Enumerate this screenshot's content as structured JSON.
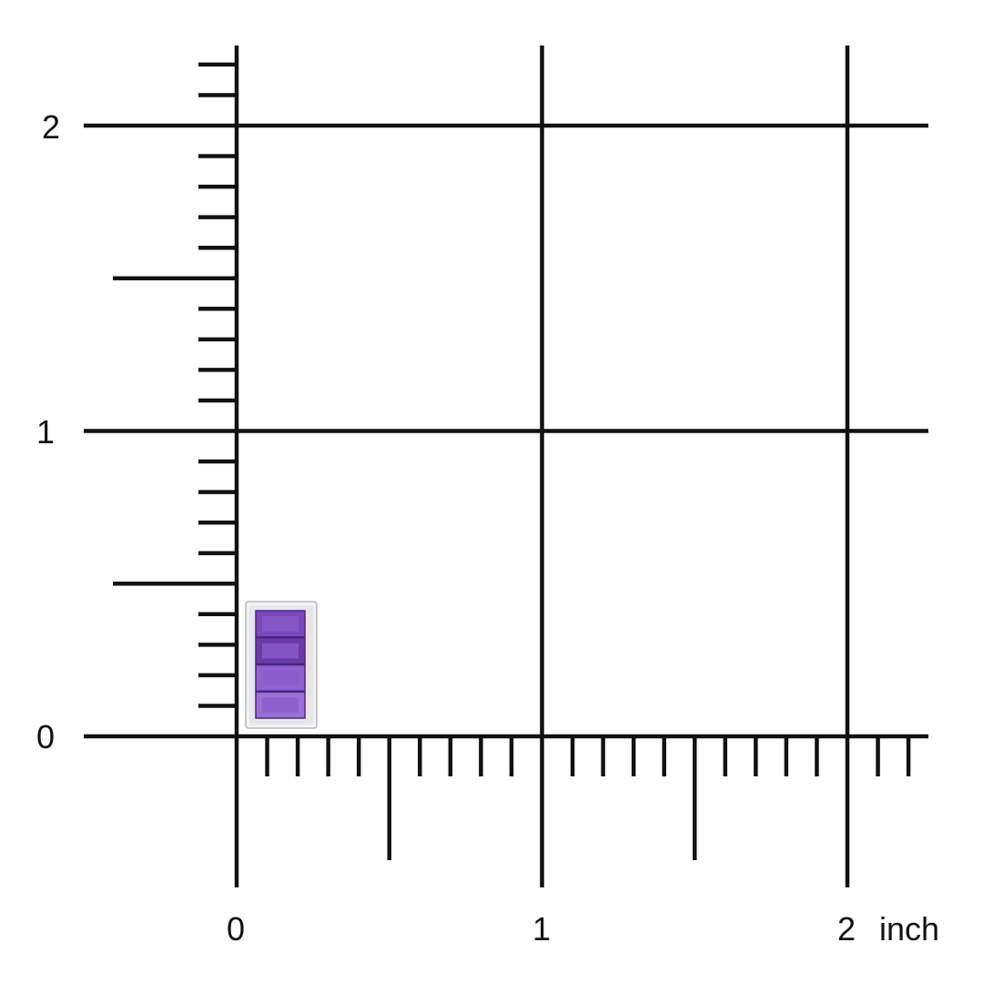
{
  "grid": {
    "unit": "inch",
    "x_range": [
      0,
      2.2
    ],
    "y_range": [
      0,
      2.2
    ],
    "minor_tick_step": 0.1,
    "half_tick_step": 0.5,
    "major_step": 1,
    "line_color": "#111111"
  },
  "labels": {
    "y_ticks": [
      "0",
      "1",
      "2"
    ],
    "x_ticks": [
      "0",
      "1",
      "2"
    ],
    "x_unit": "inch"
  },
  "product": {
    "type": "pendant",
    "metal_color": "#e6e6e8",
    "gem_color": "#8a5cc8",
    "gem_count": 4,
    "width_in": 0.23,
    "height_in": 0.42
  }
}
